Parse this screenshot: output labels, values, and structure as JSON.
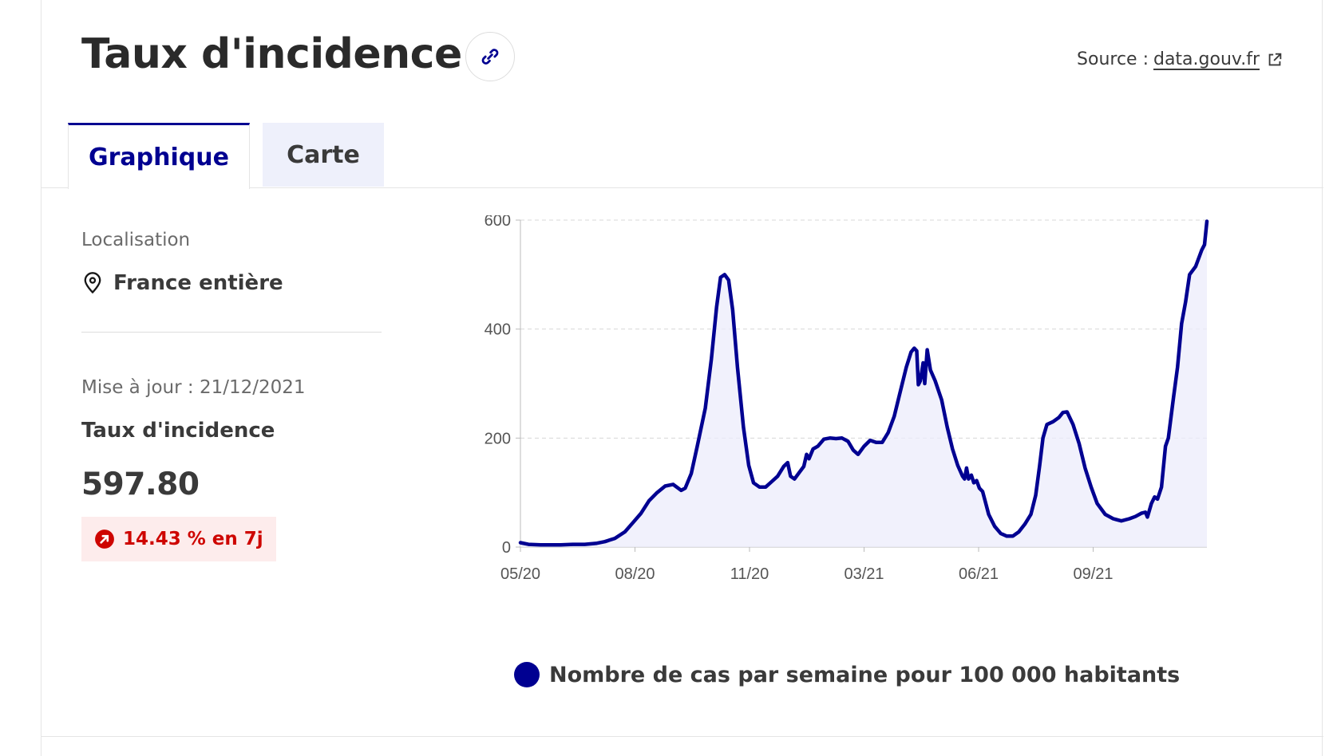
{
  "header": {
    "title": "Taux d'incidence",
    "source_prefix": "Source :",
    "source_link": "data.gouv.fr"
  },
  "tabs": [
    {
      "label": "Graphique",
      "active": true
    },
    {
      "label": "Carte",
      "active": false
    }
  ],
  "sidebar": {
    "location_label": "Localisation",
    "location_value": "France entière",
    "update_text": "Mise à jour : 21/12/2021",
    "metric_label": "Taux d'incidence",
    "metric_value": "597.80",
    "change_text": "14.43 % en 7j"
  },
  "colors": {
    "accent": "#000091",
    "fill": "#ececfb",
    "alert": "#ce0500",
    "alert_bg": "#fdecec"
  },
  "icons": {
    "link": "link-icon",
    "external": "external-link-icon",
    "location": "map-pin-icon",
    "trend": "arrow-up-right-circle-icon"
  },
  "chart_data": {
    "type": "area",
    "ylim": [
      0,
      600
    ],
    "yticks": [
      "0",
      "200",
      "400",
      "600"
    ],
    "xticks": [
      "05/20",
      "08/20",
      "11/20",
      "03/21",
      "06/21",
      "09/21"
    ],
    "series": [
      {
        "name": "Nombre de cas par semaine pour 100 000 habitants",
        "points": [
          [
            0,
            8
          ],
          [
            0.2,
            5
          ],
          [
            0.5,
            4
          ],
          [
            0.8,
            4
          ],
          [
            1.0,
            4
          ],
          [
            1.3,
            5
          ],
          [
            1.6,
            5
          ],
          [
            1.9,
            7
          ],
          [
            2.1,
            10
          ],
          [
            2.35,
            16
          ],
          [
            2.6,
            28
          ],
          [
            2.8,
            45
          ],
          [
            3.0,
            62
          ],
          [
            3.2,
            85
          ],
          [
            3.4,
            100
          ],
          [
            3.6,
            112
          ],
          [
            3.8,
            115
          ],
          [
            4.0,
            104
          ],
          [
            4.1,
            108
          ],
          [
            4.25,
            135
          ],
          [
            4.4,
            185
          ],
          [
            4.6,
            255
          ],
          [
            4.75,
            345
          ],
          [
            4.88,
            440
          ],
          [
            4.98,
            495
          ],
          [
            5.08,
            500
          ],
          [
            5.18,
            490
          ],
          [
            5.28,
            435
          ],
          [
            5.4,
            330
          ],
          [
            5.55,
            220
          ],
          [
            5.68,
            150
          ],
          [
            5.8,
            118
          ],
          [
            5.95,
            110
          ],
          [
            6.1,
            110
          ],
          [
            6.25,
            120
          ],
          [
            6.4,
            130
          ],
          [
            6.55,
            148
          ],
          [
            6.65,
            155
          ],
          [
            6.72,
            130
          ],
          [
            6.82,
            125
          ],
          [
            6.95,
            138
          ],
          [
            7.05,
            148
          ],
          [
            7.12,
            170
          ],
          [
            7.18,
            162
          ],
          [
            7.28,
            180
          ],
          [
            7.4,
            185
          ],
          [
            7.55,
            198
          ],
          [
            7.7,
            200
          ],
          [
            7.85,
            199
          ],
          [
            8.0,
            200
          ],
          [
            8.15,
            194
          ],
          [
            8.28,
            178
          ],
          [
            8.4,
            170
          ],
          [
            8.55,
            185
          ],
          [
            8.7,
            196
          ],
          [
            8.85,
            192
          ],
          [
            9.0,
            192
          ],
          [
            9.15,
            210
          ],
          [
            9.3,
            240
          ],
          [
            9.45,
            285
          ],
          [
            9.6,
            330
          ],
          [
            9.72,
            358
          ],
          [
            9.8,
            365
          ],
          [
            9.86,
            360
          ],
          [
            9.9,
            298
          ],
          [
            9.95,
            305
          ],
          [
            10.02,
            338
          ],
          [
            10.06,
            300
          ],
          [
            10.12,
            362
          ],
          [
            10.2,
            325
          ],
          [
            10.32,
            305
          ],
          [
            10.48,
            270
          ],
          [
            10.62,
            220
          ],
          [
            10.75,
            180
          ],
          [
            10.88,
            150
          ],
          [
            11.0,
            130
          ],
          [
            11.05,
            125
          ],
          [
            11.1,
            145
          ],
          [
            11.15,
            125
          ],
          [
            11.22,
            132
          ],
          [
            11.28,
            118
          ],
          [
            11.35,
            122
          ],
          [
            11.42,
            108
          ],
          [
            11.5,
            102
          ],
          [
            11.56,
            85
          ],
          [
            11.65,
            60
          ],
          [
            11.8,
            38
          ],
          [
            11.95,
            25
          ],
          [
            12.1,
            20
          ],
          [
            12.25,
            20
          ],
          [
            12.4,
            28
          ],
          [
            12.55,
            42
          ],
          [
            12.7,
            60
          ],
          [
            12.82,
            95
          ],
          [
            12.92,
            150
          ],
          [
            13.0,
            200
          ],
          [
            13.1,
            225
          ],
          [
            13.25,
            230
          ],
          [
            13.4,
            238
          ],
          [
            13.5,
            247
          ],
          [
            13.6,
            248
          ],
          [
            13.75,
            225
          ],
          [
            13.9,
            190
          ],
          [
            14.05,
            145
          ],
          [
            14.2,
            110
          ],
          [
            14.35,
            80
          ],
          [
            14.55,
            60
          ],
          [
            14.75,
            52
          ],
          [
            14.95,
            48
          ],
          [
            15.15,
            52
          ],
          [
            15.3,
            56
          ],
          [
            15.45,
            62
          ],
          [
            15.55,
            64
          ],
          [
            15.6,
            55
          ],
          [
            15.7,
            80
          ],
          [
            15.78,
            92
          ],
          [
            15.85,
            88
          ],
          [
            15.95,
            110
          ],
          [
            16.05,
            185
          ],
          [
            16.12,
            200
          ],
          [
            16.25,
            275
          ],
          [
            16.35,
            330
          ],
          [
            16.45,
            410
          ],
          [
            16.55,
            450
          ],
          [
            16.65,
            500
          ],
          [
            16.8,
            515
          ],
          [
            16.95,
            545
          ],
          [
            17.02,
            555
          ],
          [
            17.08,
            597.8
          ]
        ]
      }
    ],
    "x_domain_months": [
      0,
      17.08
    ]
  }
}
